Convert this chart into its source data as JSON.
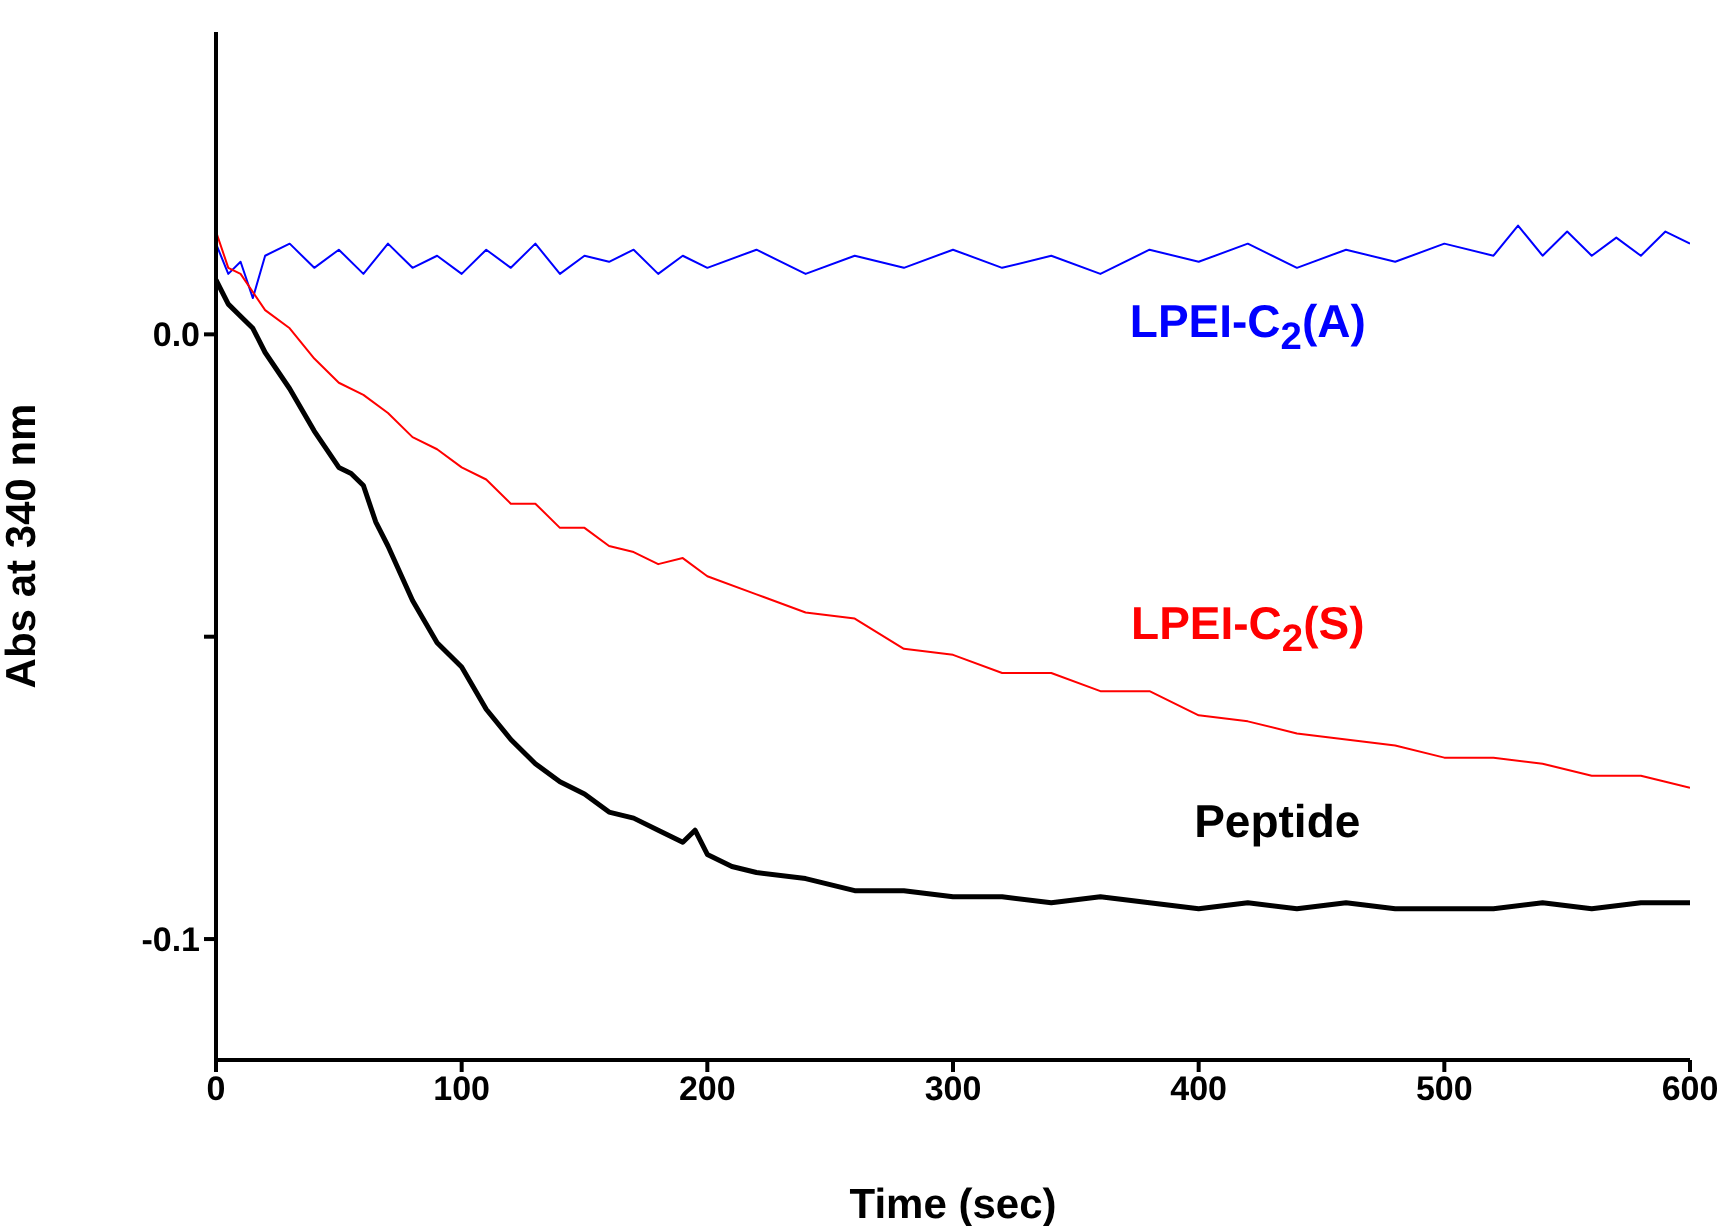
{
  "chart_data": {
    "type": "line",
    "xlabel": "Time (sec)",
    "ylabel": "Abs at 340 nm",
    "xlim": [
      0,
      600
    ],
    "xticks": [
      0,
      100,
      200,
      300,
      400,
      500,
      600
    ],
    "ylim": [
      -0.12,
      0.05
    ],
    "yticks": [
      {
        "value": 0,
        "label": "0.0"
      },
      {
        "value": -0.05,
        "label": null
      },
      {
        "value": -0.1,
        "label": "-0.1"
      }
    ],
    "grid": false,
    "marker": "none",
    "line_style": "solid",
    "series": [
      {
        "name": "LPEI-C$_{2}$(A)",
        "color": "#0000ff",
        "x": [
          0,
          5,
          10,
          15,
          20,
          30,
          40,
          50,
          60,
          70,
          80,
          90,
          100,
          110,
          120,
          130,
          140,
          150,
          160,
          170,
          180,
          190,
          200,
          220,
          240,
          260,
          280,
          300,
          320,
          340,
          360,
          380,
          400,
          420,
          440,
          460,
          480,
          500,
          520,
          530,
          540,
          550,
          560,
          570,
          580,
          590,
          600
        ],
        "values": [
          0.015,
          0.01,
          0.012,
          0.006,
          0.013,
          0.015,
          0.011,
          0.014,
          0.01,
          0.015,
          0.011,
          0.013,
          0.01,
          0.014,
          0.011,
          0.015,
          0.01,
          0.013,
          0.012,
          0.014,
          0.01,
          0.013,
          0.011,
          0.014,
          0.01,
          0.013,
          0.011,
          0.014,
          0.011,
          0.013,
          0.01,
          0.014,
          0.012,
          0.015,
          0.011,
          0.014,
          0.012,
          0.015,
          0.013,
          0.018,
          0.013,
          0.017,
          0.013,
          0.016,
          0.013,
          0.017,
          0.015
        ]
      },
      {
        "name": "LPEI-C$_{2}$(S)",
        "color": "#ff0000",
        "x": [
          0,
          5,
          10,
          15,
          20,
          30,
          40,
          50,
          60,
          70,
          80,
          90,
          100,
          110,
          120,
          130,
          140,
          150,
          160,
          170,
          180,
          190,
          200,
          220,
          240,
          260,
          280,
          300,
          320,
          340,
          360,
          380,
          400,
          420,
          440,
          460,
          480,
          500,
          520,
          540,
          560,
          580,
          590,
          600
        ],
        "values": [
          0.017,
          0.011,
          0.01,
          0.007,
          0.004,
          0.001,
          -0.004,
          -0.008,
          -0.01,
          -0.013,
          -0.017,
          -0.019,
          -0.022,
          -0.024,
          -0.028,
          -0.028,
          -0.032,
          -0.032,
          -0.035,
          -0.036,
          -0.038,
          -0.037,
          -0.04,
          -0.043,
          -0.046,
          -0.047,
          -0.052,
          -0.053,
          -0.056,
          -0.056,
          -0.059,
          -0.059,
          -0.063,
          -0.064,
          -0.066,
          -0.067,
          -0.068,
          -0.07,
          -0.07,
          -0.071,
          -0.073,
          -0.073,
          -0.074,
          -0.075
        ]
      },
      {
        "name": "Peptide",
        "color": "#000000",
        "x": [
          0,
          5,
          10,
          15,
          20,
          30,
          40,
          50,
          55,
          60,
          65,
          70,
          80,
          90,
          100,
          110,
          120,
          130,
          140,
          150,
          160,
          170,
          180,
          190,
          195,
          200,
          210,
          220,
          240,
          260,
          280,
          300,
          320,
          340,
          360,
          380,
          400,
          420,
          440,
          460,
          480,
          500,
          520,
          540,
          560,
          580,
          600
        ],
        "values": [
          0.009,
          0.005,
          0.003,
          0.001,
          -0.003,
          -0.009,
          -0.016,
          -0.022,
          -0.023,
          -0.025,
          -0.031,
          -0.035,
          -0.044,
          -0.051,
          -0.055,
          -0.062,
          -0.067,
          -0.071,
          -0.074,
          -0.076,
          -0.079,
          -0.08,
          -0.082,
          -0.084,
          -0.082,
          -0.086,
          -0.088,
          -0.089,
          -0.09,
          -0.092,
          -0.092,
          -0.093,
          -0.093,
          -0.094,
          -0.093,
          -0.094,
          -0.095,
          -0.094,
          -0.095,
          -0.094,
          -0.095,
          -0.095,
          -0.095,
          -0.094,
          -0.095,
          -0.094,
          -0.094
        ]
      }
    ]
  }
}
